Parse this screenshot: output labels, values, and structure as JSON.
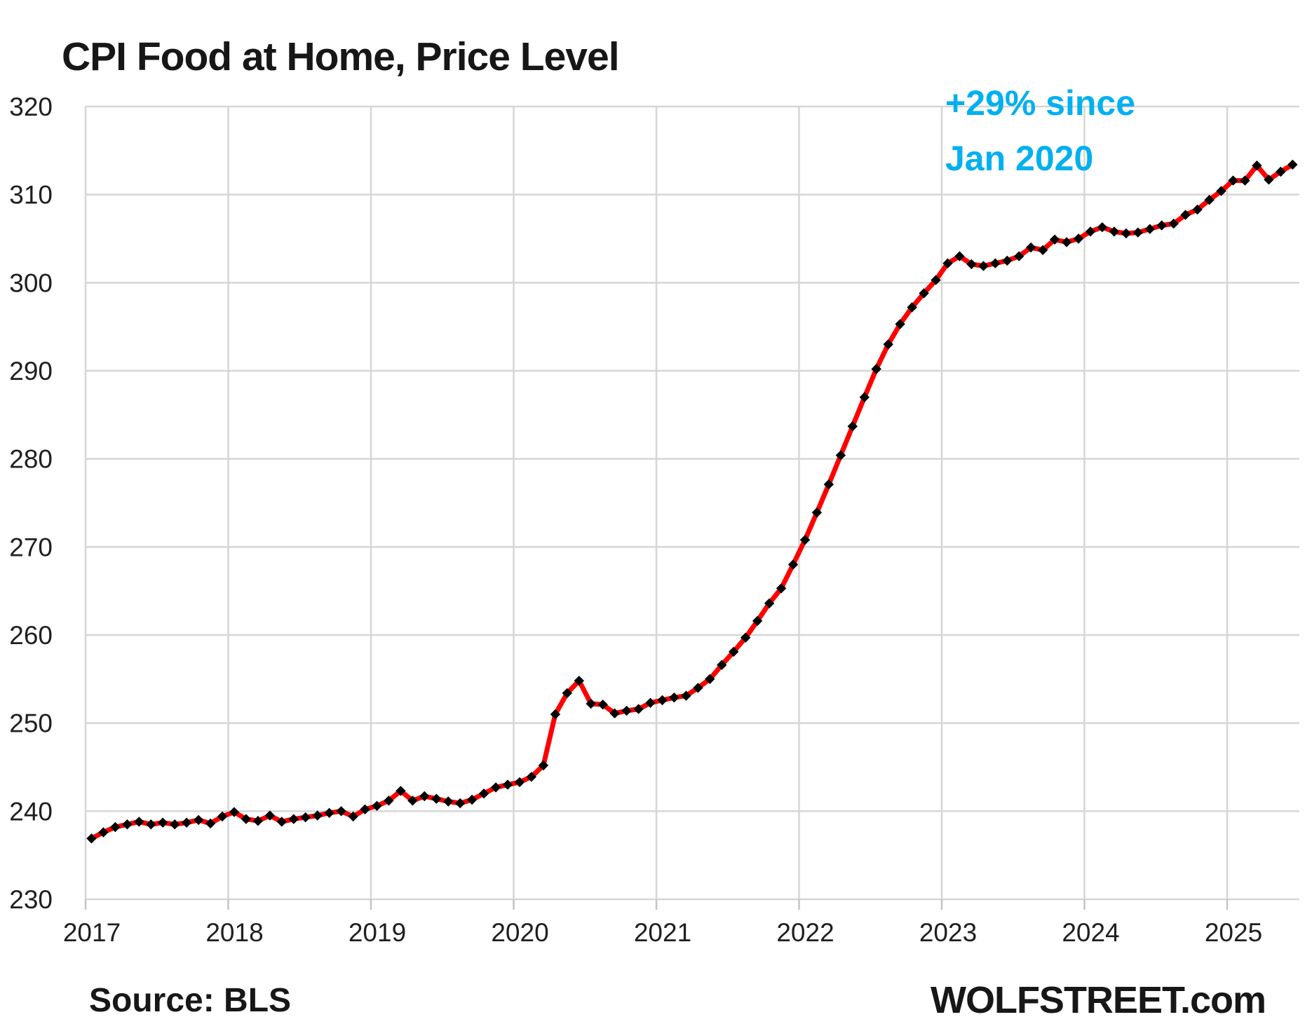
{
  "title": "CPI Food at Home, Price Level",
  "annotation": {
    "line1": "+29% since",
    "line2": "Jan 2020",
    "color": "#00B0F0"
  },
  "source_note": "Source: BLS",
  "watermark": "WOLFSTREET.com",
  "colors": {
    "line": "#FF0000",
    "marker": "#000000",
    "grid": "#D6D6D6",
    "tick": "#C4C4C4",
    "background": "#FFFFFF"
  },
  "chart_data": {
    "type": "line",
    "title": "CPI Food at Home, Price Level",
    "series_name": "CPI food at home, price level (index)",
    "frequency": "monthly",
    "x_start": "2017-01",
    "x_end": "2025-06",
    "x_tick_labels": [
      "2017",
      "2018",
      "2019",
      "2020",
      "2021",
      "2022",
      "2023",
      "2024",
      "2025"
    ],
    "y_ticks": [
      230,
      240,
      250,
      260,
      270,
      280,
      290,
      300,
      310,
      320
    ],
    "ylim": [
      230,
      320
    ],
    "grid": true,
    "legend": "none",
    "marker": "diamond",
    "values": [
      236.9,
      237.6,
      238.2,
      238.5,
      238.8,
      238.5,
      238.7,
      238.5,
      238.7,
      239.0,
      238.6,
      239.4,
      239.9,
      239.1,
      238.9,
      239.5,
      238.8,
      239.1,
      239.3,
      239.5,
      239.8,
      240.0,
      239.4,
      240.2,
      240.6,
      241.2,
      242.3,
      241.2,
      241.7,
      241.4,
      241.1,
      240.9,
      241.3,
      242.0,
      242.7,
      243.0,
      243.3,
      243.9,
      245.2,
      251.0,
      253.4,
      254.8,
      252.2,
      252.1,
      251.1,
      251.4,
      251.6,
      252.3,
      252.6,
      252.9,
      253.1,
      254.0,
      255.0,
      256.6,
      258.1,
      259.7,
      261.6,
      263.6,
      265.3,
      268.0,
      270.8,
      273.9,
      277.1,
      280.4,
      283.7,
      287.0,
      290.2,
      293.0,
      295.3,
      297.2,
      298.8,
      300.3,
      302.2,
      303.0,
      302.1,
      301.9,
      302.2,
      302.5,
      303.0,
      304.0,
      303.7,
      304.9,
      304.6,
      305.0,
      305.8,
      306.3,
      305.8,
      305.6,
      305.7,
      306.1,
      306.5,
      306.7,
      307.7,
      308.3,
      309.4,
      310.4,
      311.6,
      311.6,
      313.3,
      311.7,
      312.6,
      313.4
    ]
  }
}
